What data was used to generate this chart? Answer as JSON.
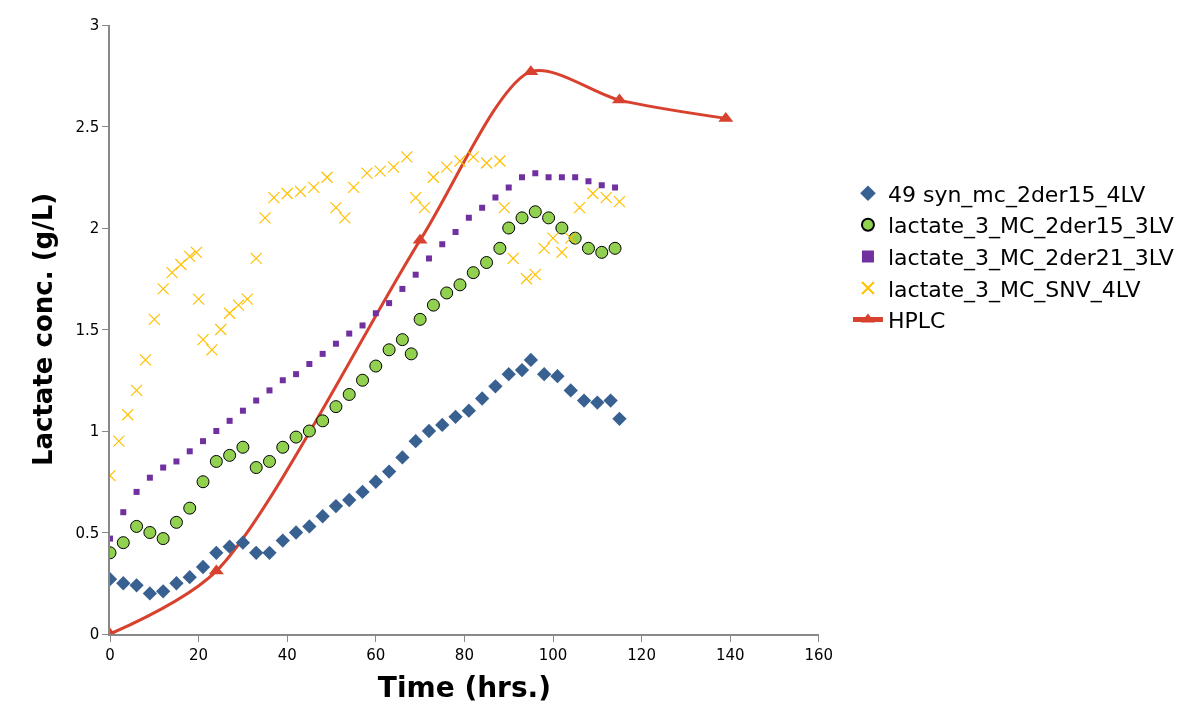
{
  "chart_data": {
    "type": "scatter",
    "xlabel": "Time (hrs.)",
    "ylabel": "Lactate conc. (g/L)",
    "xlim": [
      0,
      160
    ],
    "xticks": [
      0,
      20,
      40,
      60,
      80,
      100,
      120,
      140,
      160
    ],
    "ylim": [
      0,
      3
    ],
    "yticks": [
      0,
      0.5,
      1,
      1.5,
      2,
      2.5,
      3
    ],
    "grid": false,
    "legend": "right",
    "series": [
      {
        "name": "49 syn_mc_2der15_4LV",
        "color": "#386192",
        "marker": "diamond",
        "x": [
          0,
          3,
          6,
          9,
          12,
          15,
          18,
          21,
          24,
          27,
          30,
          33,
          36,
          39,
          42,
          45,
          48,
          51,
          54,
          57,
          60,
          63,
          66,
          69,
          72,
          75,
          78,
          81,
          84,
          87,
          90,
          93,
          95,
          98,
          101,
          104,
          107,
          110,
          113,
          115
        ],
        "values": [
          0.27,
          0.25,
          0.24,
          0.2,
          0.21,
          0.25,
          0.28,
          0.33,
          0.4,
          0.43,
          0.45,
          0.4,
          0.4,
          0.46,
          0.5,
          0.53,
          0.58,
          0.63,
          0.66,
          0.7,
          0.75,
          0.8,
          0.87,
          0.95,
          1.0,
          1.03,
          1.07,
          1.1,
          1.16,
          1.22,
          1.28,
          1.3,
          1.35,
          1.28,
          1.27,
          1.2,
          1.15,
          1.14,
          1.15,
          1.06
        ]
      },
      {
        "name": "lactate_3_MC_2der15_3LV",
        "color": "#92d050",
        "marker": "circle",
        "x": [
          0,
          3,
          6,
          9,
          12,
          15,
          18,
          21,
          24,
          27,
          30,
          33,
          36,
          39,
          42,
          45,
          48,
          51,
          54,
          57,
          60,
          63,
          66,
          68,
          70,
          73,
          76,
          79,
          82,
          85,
          88,
          90,
          93,
          96,
          99,
          102,
          105,
          108,
          111,
          114
        ],
        "values": [
          0.4,
          0.45,
          0.53,
          0.5,
          0.47,
          0.55,
          0.62,
          0.75,
          0.85,
          0.88,
          0.92,
          0.82,
          0.85,
          0.92,
          0.97,
          1.0,
          1.05,
          1.12,
          1.18,
          1.25,
          1.32,
          1.4,
          1.45,
          1.38,
          1.55,
          1.62,
          1.68,
          1.72,
          1.78,
          1.83,
          1.9,
          2.0,
          2.05,
          2.08,
          2.05,
          2.0,
          1.95,
          1.9,
          1.88,
          1.9
        ]
      },
      {
        "name": "lactate_3_MC_2der21_3LV",
        "color": "#7030a0",
        "marker": "square",
        "x": [
          0,
          3,
          6,
          9,
          12,
          15,
          18,
          21,
          24,
          27,
          30,
          33,
          36,
          39,
          42,
          45,
          48,
          51,
          54,
          57,
          60,
          63,
          66,
          69,
          72,
          75,
          78,
          81,
          84,
          87,
          90,
          93,
          96,
          99,
          102,
          105,
          108,
          111,
          114
        ],
        "values": [
          0.47,
          0.6,
          0.7,
          0.77,
          0.82,
          0.85,
          0.9,
          0.95,
          1.0,
          1.05,
          1.1,
          1.15,
          1.2,
          1.25,
          1.28,
          1.33,
          1.38,
          1.43,
          1.48,
          1.52,
          1.58,
          1.63,
          1.7,
          1.77,
          1.85,
          1.92,
          1.98,
          2.05,
          2.1,
          2.15,
          2.2,
          2.25,
          2.27,
          2.25,
          2.25,
          2.25,
          2.23,
          2.21,
          2.2
        ]
      },
      {
        "name": "lactate_3_MC_SNV_4LV",
        "color": "#ffc000",
        "marker": "cross",
        "x": [
          0,
          2,
          4,
          6,
          8,
          10,
          12,
          14,
          16,
          18,
          19.5,
          20,
          21,
          23,
          25,
          27,
          29,
          31,
          33,
          35,
          37,
          40,
          43,
          46,
          49,
          51,
          53,
          55,
          58,
          61,
          64,
          67,
          69,
          71,
          73,
          76,
          79,
          82,
          85,
          88,
          89,
          91,
          94,
          96,
          98,
          100,
          102,
          104,
          106,
          109,
          112,
          115
        ],
        "values": [
          0.78,
          0.95,
          1.08,
          1.2,
          1.35,
          1.55,
          1.7,
          1.78,
          1.82,
          1.86,
          1.88,
          1.65,
          1.45,
          1.4,
          1.5,
          1.58,
          1.62,
          1.65,
          1.85,
          2.05,
          2.15,
          2.17,
          2.18,
          2.2,
          2.25,
          2.1,
          2.05,
          2.2,
          2.27,
          2.28,
          2.3,
          2.35,
          2.15,
          2.1,
          2.25,
          2.3,
          2.33,
          2.35,
          2.32,
          2.33,
          2.1,
          1.85,
          1.75,
          1.77,
          1.9,
          1.95,
          1.88,
          1.95,
          2.1,
          2.17,
          2.15,
          2.13
        ]
      },
      {
        "name": "HPLC",
        "type": "line",
        "color": "#d7412d",
        "marker": "triangle",
        "line_style": "solid",
        "x": [
          0,
          24,
          70,
          95,
          115,
          139
        ],
        "values": [
          0,
          0.31,
          1.94,
          2.77,
          2.63,
          2.54
        ]
      }
    ]
  }
}
